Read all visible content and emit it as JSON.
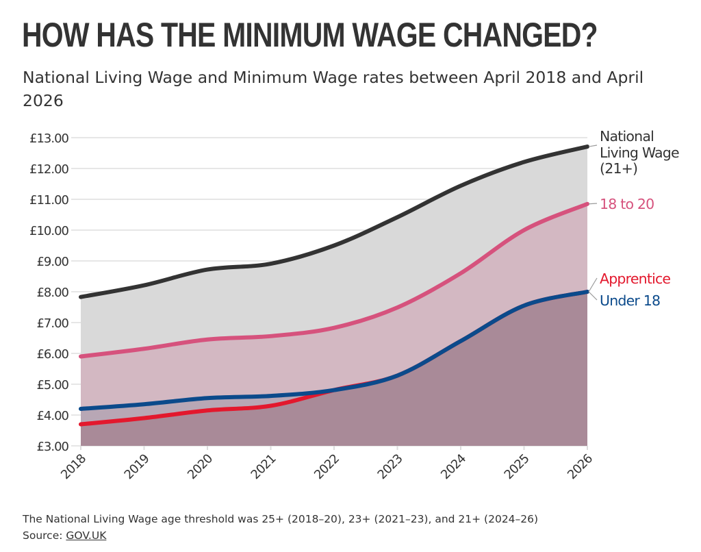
{
  "title": "HOW HAS THE MINIMUM WAGE CHANGED?",
  "subtitle": "National Living Wage and Minimum Wage rates between April 2018 and April 2026",
  "footnote": "The National Living Wage age threshold was 25+ (2018–20), 23+ (2021–23), and 21+ (2024–26)",
  "source_label": "Source: ",
  "source_link": "GOV.UK",
  "chart_data": {
    "type": "area",
    "x": [
      2018,
      2019,
      2020,
      2021,
      2022,
      2023,
      2024,
      2025,
      2026
    ],
    "xtick_labels": [
      "2018",
      "2019",
      "2020",
      "2021",
      "2022",
      "2023",
      "2024",
      "2025",
      "2026"
    ],
    "ylim": [
      3,
      13
    ],
    "ytick_labels": [
      "£3.00",
      "£4.00",
      "£5.00",
      "£6.00",
      "£7.00",
      "£8.00",
      "£9.00",
      "£10.00",
      "£11.00",
      "£12.00",
      "£13.00"
    ],
    "grid": true,
    "legend": "right, direct labels",
    "series": [
      {
        "name": "National Living Wage (21+)",
        "label_lines": [
          "National",
          "Living Wage",
          "(21+)"
        ],
        "color": "#333333",
        "fill": "#d9d9d9",
        "values": [
          7.83,
          8.21,
          8.72,
          8.91,
          9.5,
          10.42,
          11.44,
          12.21,
          12.71
        ]
      },
      {
        "name": "18 to 20",
        "label_lines": [
          "18 to 20"
        ],
        "color": "#d6527d",
        "fill": "#d3b8c2",
        "values": [
          5.9,
          6.15,
          6.45,
          6.56,
          6.83,
          7.49,
          8.6,
          10.0,
          10.85
        ]
      },
      {
        "name": "Under 18",
        "label_lines": [
          "Under 18"
        ],
        "color": "#0b4a8b",
        "fill": "#b8a7b5",
        "values": [
          4.2,
          4.35,
          4.55,
          4.62,
          4.81,
          5.28,
          6.4,
          7.55,
          8.0
        ]
      },
      {
        "name": "Apprentice",
        "label_lines": [
          "Apprentice"
        ],
        "color": "#e3182d",
        "fill": "#a98a98",
        "values": [
          3.7,
          3.9,
          4.15,
          4.3,
          4.81,
          5.28,
          6.4,
          7.55,
          8.0
        ]
      }
    ]
  }
}
